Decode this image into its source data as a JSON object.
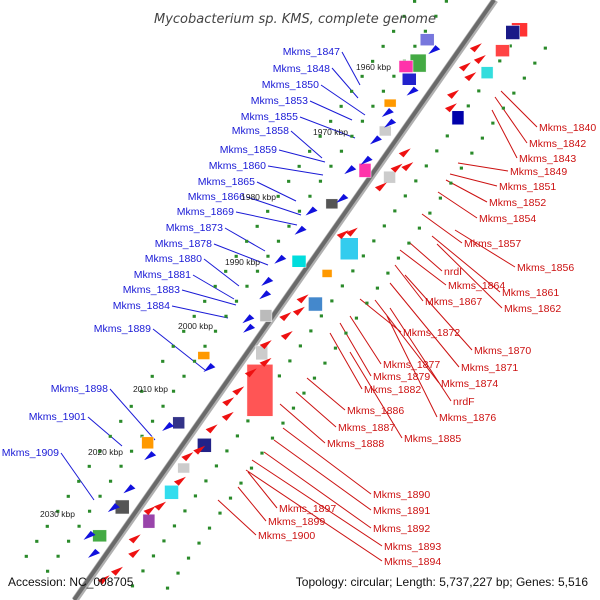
{
  "title": "Mycobacterium sp. KMS, complete genome",
  "footer": {
    "accession": "Accession: NC_008705",
    "topology": "Topology: circular; Length: 5,737,227 bp; Genes: 5,516"
  },
  "colors": {
    "backbone": "#808080",
    "tick": "#2a8a2a",
    "left_label": "#1a1ad6",
    "right_label": "#cc1111"
  },
  "kbp_marks": [
    "1960 kbp",
    "1970 kbp",
    "1980 kbp",
    "1990 kbp",
    "2000 kbp",
    "2010 kbp",
    "2020 kbp",
    "2030 kbp"
  ],
  "left_genes": [
    "Mkms_1847",
    "Mkms_1848",
    "Mkms_1850",
    "Mkms_1853",
    "Mkms_1855",
    "Mkms_1858",
    "Mkms_1859",
    "Mkms_1860",
    "Mkms_1865",
    "Mkms_1866",
    "Mkms_1869",
    "Mkms_1873",
    "Mkms_1878",
    "Mkms_1880",
    "Mkms_1881",
    "Mkms_1883",
    "Mkms_1884",
    "Mkms_1889",
    "Mkms_1898",
    "Mkms_1901",
    "Mkms_1909"
  ],
  "right_genes": [
    "Mkms_1840",
    "Mkms_1842",
    "Mkms_1843",
    "Mkms_1849",
    "Mkms_1851",
    "Mkms_1852",
    "Mkms_1854",
    "Mkms_1857",
    "Mkms_1856",
    "nrdI",
    "Mkms_1864",
    "Mkms_1861",
    "Mkms_1867",
    "Mkms_1862",
    "Mkms_1872",
    "Mkms_1870",
    "Mkms_1877",
    "Mkms_1871",
    "Mkms_1879",
    "Mkms_1874",
    "Mkms_1882",
    "nrdF",
    "Mkms_1876",
    "Mkms_1886",
    "Mkms_1887",
    "Mkms_1885",
    "Mkms_1888",
    "Mkms_1890",
    "Mkms_1891",
    "Mkms_1897",
    "Mkms_1892",
    "Mkms_1899",
    "Mkms_1900",
    "Mkms_1893",
    "Mkms_1894"
  ]
}
